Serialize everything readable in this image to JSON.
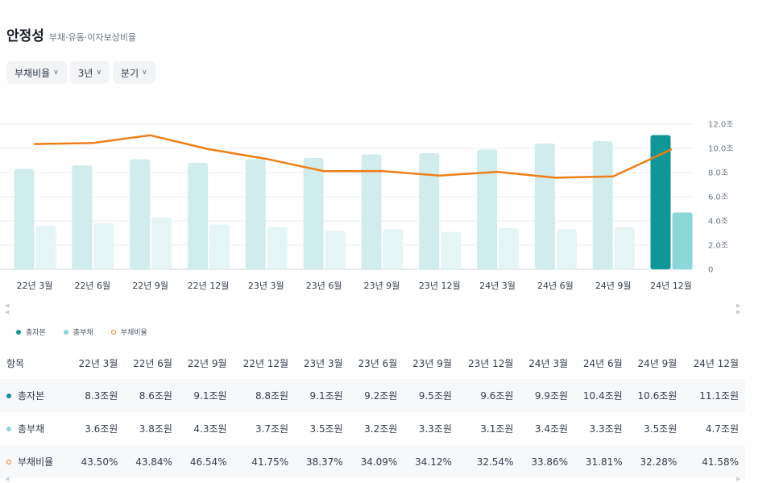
{
  "header": {
    "title": "안정성",
    "subtitle": "부채·유동·이자보상비율"
  },
  "filters": [
    {
      "label": "부채비율"
    },
    {
      "label": "3년"
    },
    {
      "label": "분기"
    }
  ],
  "legend": [
    {
      "label": "총자본",
      "color": "#0f9797"
    },
    {
      "label": "총부채",
      "color": "#8ad7d9"
    },
    {
      "label": "부채비율",
      "color": "#ee7f18"
    }
  ],
  "table": {
    "header_label": "항목",
    "periods": [
      "22년 3월",
      "22년 6월",
      "22년 9월",
      "22년 12월",
      "23년 3월",
      "23년 6월",
      "23년 9월",
      "23년 12월",
      "24년 3월",
      "24년 6월",
      "24년 9월",
      "24년 12월"
    ],
    "rows": [
      {
        "label": "총자본",
        "values": [
          "8.3조원",
          "8.6조원",
          "9.1조원",
          "8.8조원",
          "9.1조원",
          "9.2조원",
          "9.5조원",
          "9.6조원",
          "9.9조원",
          "10.4조원",
          "10.6조원",
          "11.1조원"
        ]
      },
      {
        "label": "총부채",
        "values": [
          "3.6조원",
          "3.8조원",
          "4.3조원",
          "3.7조원",
          "3.5조원",
          "3.2조원",
          "3.3조원",
          "3.1조원",
          "3.4조원",
          "3.3조원",
          "3.5조원",
          "4.7조원"
        ]
      },
      {
        "label": "부채비율",
        "values": [
          "43.50%",
          "43.84%",
          "46.54%",
          "41.75%",
          "38.37%",
          "34.09%",
          "34.12%",
          "32.54%",
          "33.86%",
          "31.81%",
          "32.28%",
          "41.58%"
        ]
      }
    ]
  },
  "chart_data": {
    "type": "bar",
    "categories": [
      "22년 3월",
      "22년 6월",
      "22년 9월",
      "22년 12월",
      "23년 3월",
      "23년 6월",
      "23년 9월",
      "23년 12월",
      "24년 3월",
      "24년 6월",
      "24년 9월",
      "24년 12월"
    ],
    "series": [
      {
        "name": "총자본",
        "type": "bar",
        "values": [
          8.3,
          8.6,
          9.1,
          8.8,
          9.1,
          9.2,
          9.5,
          9.6,
          9.9,
          10.4,
          10.6,
          11.1
        ],
        "color": "#d0ecec",
        "highlight_color": "#0f9797"
      },
      {
        "name": "총부채",
        "type": "bar",
        "values": [
          3.6,
          3.8,
          4.3,
          3.7,
          3.5,
          3.2,
          3.3,
          3.1,
          3.4,
          3.3,
          3.5,
          4.7
        ],
        "color": "#e5f5f5",
        "highlight_color": "#8ad7d9"
      },
      {
        "name": "부채비율",
        "type": "line",
        "values": [
          43.5,
          43.84,
          46.54,
          41.75,
          38.37,
          34.09,
          34.12,
          32.54,
          33.86,
          31.81,
          32.28,
          41.58
        ],
        "color": "#ee7f18"
      }
    ],
    "y_ticks": [
      "12.0조",
      "10.0조",
      "8.0조",
      "6.0조",
      "4.0조",
      "2.0조",
      "0"
    ],
    "ylim": [
      0,
      12
    ],
    "y2lim": [
      0,
      50.4
    ],
    "highlight_index": 11,
    "grid": true,
    "legend_position": "bottom-left"
  }
}
